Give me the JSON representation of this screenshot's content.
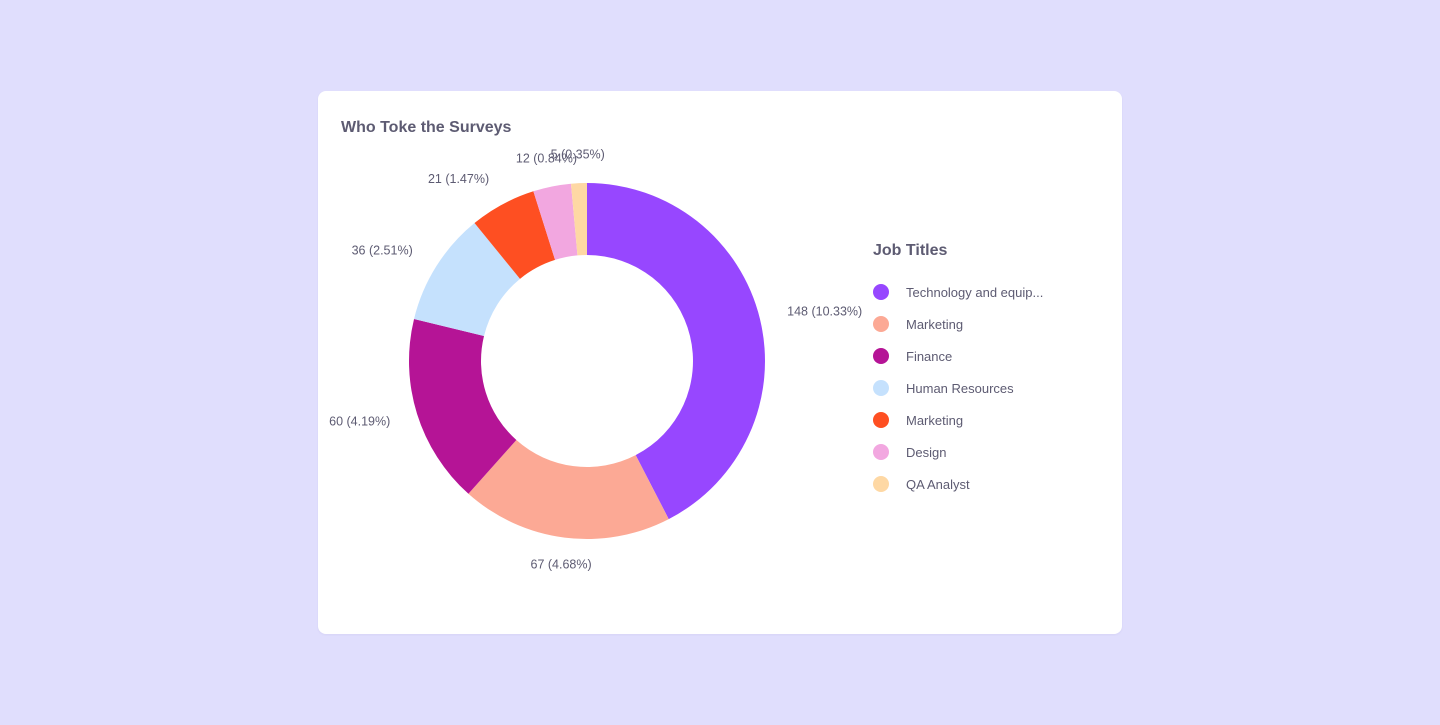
{
  "card": {
    "title": "Who Toke the Surveys"
  },
  "legend": {
    "title": "Job Titles"
  },
  "chart_data": {
    "type": "pie",
    "variant": "donut",
    "title": "Who Toke the Surveys",
    "legend_title": "Job Titles",
    "legend_position": "right",
    "slices": [
      {
        "name": "Technology and equip...",
        "value": 148,
        "label": "148 (10.33%)",
        "color": "#9747ff"
      },
      {
        "name": "Marketing",
        "value": 67,
        "label": "67 (4.68%)",
        "color": "#fca995"
      },
      {
        "name": "Finance",
        "value": 60,
        "label": "60 (4.19%)",
        "color": "#b51496"
      },
      {
        "name": "Human Resources",
        "value": 36,
        "label": "36 (2.51%)",
        "color": "#c5e1fd"
      },
      {
        "name": "Marketing",
        "value": 21,
        "label": "21 (1.47%)",
        "color": "#fe4f22"
      },
      {
        "name": "Design",
        "value": 12,
        "label": "12 (0.84%)",
        "color": "#f2a7e0"
      },
      {
        "name": "QA Analyst",
        "value": 5,
        "label": "5 (0.35%)",
        "color": "#fed8a4"
      }
    ]
  }
}
